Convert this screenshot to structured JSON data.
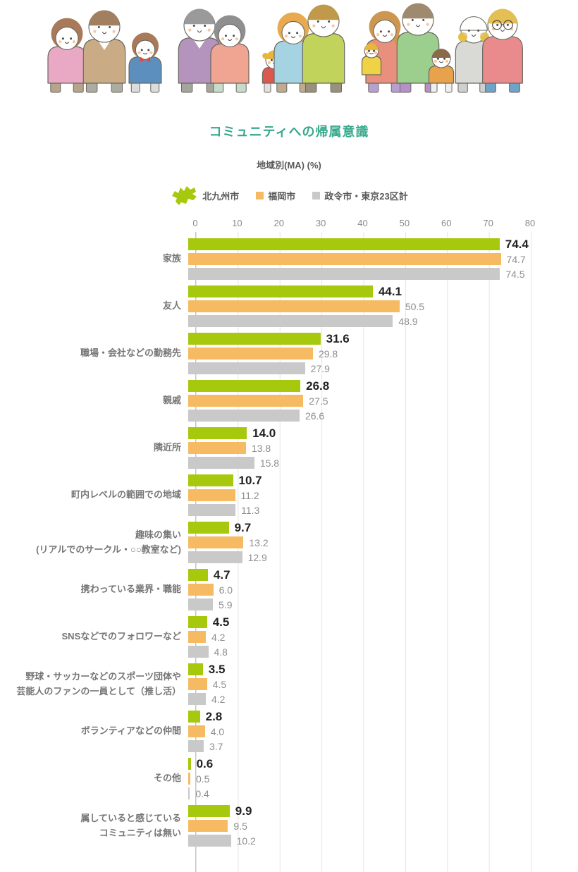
{
  "page": {
    "title": "コミュニティへの帰属意識",
    "subtitle": "地域別(MA) (%)"
  },
  "legend": {
    "items": [
      {
        "label": "北九州市",
        "color": "#a6c80d",
        "icon": "kitakyushu-map-icon"
      },
      {
        "label": "福岡市",
        "color": "#f6bb62",
        "icon": "square-swatch"
      },
      {
        "label": "政令市・東京23区計",
        "color": "#c9c9c9",
        "icon": "square-swatch"
      }
    ]
  },
  "chart_data": {
    "type": "bar",
    "orientation": "horizontal",
    "title": "コミュニティへの帰属意識",
    "subtitle": "地域別(MA) (%)",
    "grid": true,
    "legend_position": "top",
    "axis": {
      "min": 0,
      "max": 80,
      "ticks": [
        0,
        10,
        20,
        30,
        40,
        50,
        60,
        70,
        80
      ]
    },
    "categories": [
      [
        "家族"
      ],
      [
        "友人"
      ],
      [
        "職場・会社などの勤務先"
      ],
      [
        "親戚"
      ],
      [
        "隣近所"
      ],
      [
        "町内レベルの範囲での地域"
      ],
      [
        "趣味の集い",
        "(リアルでのサークル・○○教室など)"
      ],
      [
        "携わっている業界・職能"
      ],
      [
        "SNSなどでのフォロワーなど"
      ],
      [
        "野球・サッカーなどのスポーツ団体や",
        "芸能人のファンの一員として（推し活）"
      ],
      [
        "ボランティアなどの仲間"
      ],
      [
        "その他"
      ],
      [
        "属していると感じている",
        "コミュニティは無い"
      ]
    ],
    "series": [
      {
        "name": "北九州市",
        "color": "#a6c80d",
        "values": [
          74.4,
          44.1,
          31.6,
          26.8,
          14.0,
          10.7,
          9.7,
          4.7,
          4.5,
          3.5,
          2.8,
          0.6,
          9.9
        ]
      },
      {
        "name": "福岡市",
        "color": "#f6bb62",
        "values": [
          74.7,
          50.5,
          29.8,
          27.5,
          13.8,
          11.2,
          13.2,
          6.0,
          4.2,
          4.5,
          4.0,
          0.5,
          9.5
        ]
      },
      {
        "name": "政令市・東京23区計",
        "color": "#c9c9c9",
        "values": [
          74.5,
          48.9,
          27.9,
          26.6,
          15.8,
          11.3,
          12.9,
          5.9,
          4.8,
          4.2,
          3.7,
          0.4,
          10.2
        ]
      }
    ]
  }
}
